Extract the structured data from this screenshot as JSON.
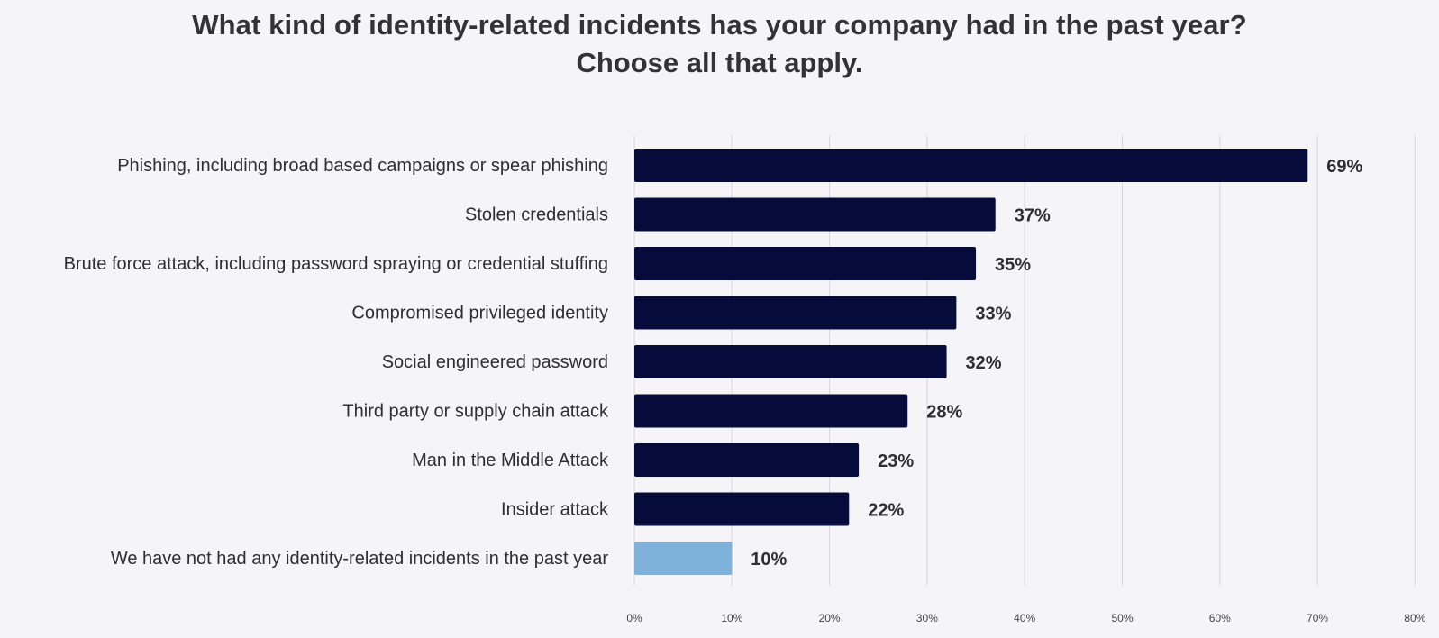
{
  "chart_data": {
    "type": "bar",
    "orientation": "horizontal",
    "title": "What kind of identity-related incidents has your company had in the past year?",
    "subtitle": "Choose all that apply.",
    "categories": [
      "Phishing, including broad based campaigns or spear phishing",
      "Stolen credentials",
      "Brute force attack, including password spraying or credential stuffing",
      "Compromised privileged identity",
      "Social engineered password",
      "Third party or supply chain attack",
      "Man in the Middle Attack",
      "Insider attack",
      "We have not had any identity-related incidents in the past year"
    ],
    "values": [
      69,
      37,
      35,
      33,
      32,
      28,
      23,
      22,
      10
    ],
    "value_labels": [
      "69%",
      "37%",
      "35%",
      "33%",
      "32%",
      "28%",
      "23%",
      "22%",
      "10%"
    ],
    "bar_colors": [
      "#050b3a",
      "#050b3a",
      "#050b3a",
      "#050b3a",
      "#050b3a",
      "#050b3a",
      "#050b3a",
      "#050b3a",
      "#7fb2db"
    ],
    "xlim": [
      0,
      80
    ],
    "xticks": [
      0,
      10,
      20,
      30,
      40,
      50,
      60,
      70,
      80
    ],
    "xtick_labels": [
      "0%",
      "10%",
      "20%",
      "30%",
      "40%",
      "50%",
      "60%",
      "70%",
      "80%"
    ],
    "grid": true,
    "xlabel": "",
    "ylabel": ""
  }
}
